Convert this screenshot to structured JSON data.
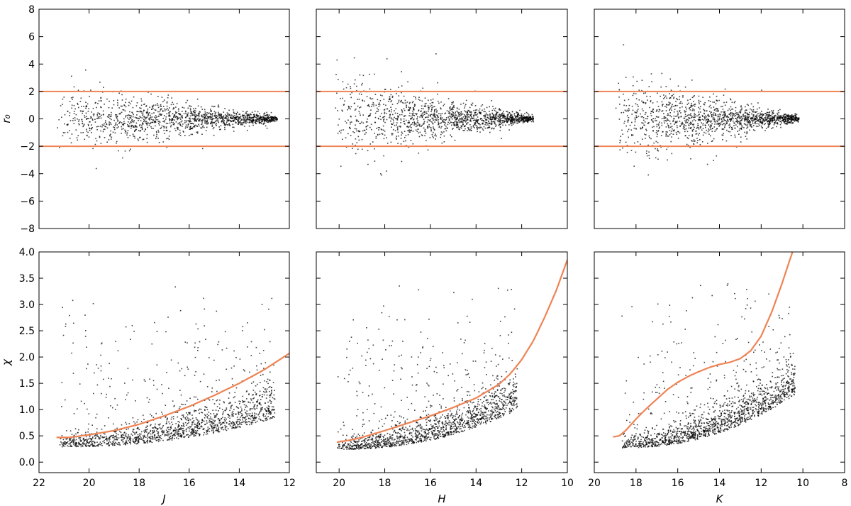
{
  "chart_data": [
    {
      "type": "scatter",
      "panel": "top-left",
      "xlabel": "",
      "ylabel": "r₀",
      "xlim": [
        22,
        12
      ],
      "ylim": [
        -8,
        8
      ],
      "xticks": [],
      "yticks": [
        "−8",
        "−6",
        "−4",
        "−2",
        "0",
        "2",
        "4",
        "6",
        "8"
      ],
      "cloud": {
        "x_start": 21.3,
        "x_end": 12.5,
        "center": 0.05,
        "spread_faint": 1.3,
        "spread_bright": 0.1,
        "n_points": 1400
      },
      "reference_lines": [
        {
          "y": 2
        },
        {
          "y": -2
        }
      ],
      "color": "#ef8354"
    },
    {
      "type": "scatter",
      "panel": "top-middle",
      "xlabel": "",
      "ylabel": "",
      "xlim": [
        21,
        10
      ],
      "ylim": [
        -8,
        8
      ],
      "xticks": [],
      "yticks": [],
      "cloud": {
        "x_start": 20.2,
        "x_end": 11.5,
        "center": 0.05,
        "spread_faint": 1.6,
        "spread_bright": 0.1,
        "n_points": 1400
      },
      "reference_lines": [
        {
          "y": 2
        },
        {
          "y": -2
        }
      ],
      "color": "#ef8354"
    },
    {
      "type": "scatter",
      "panel": "top-right",
      "xlabel": "",
      "ylabel": "",
      "xlim": [
        20,
        8
      ],
      "ylim": [
        -8,
        8
      ],
      "xticks": [],
      "yticks": [],
      "cloud": {
        "x_start": 19.0,
        "x_end": 10.2,
        "center": 0.05,
        "spread_faint": 1.6,
        "spread_bright": 0.1,
        "n_points": 1400
      },
      "reference_lines": [
        {
          "y": 2
        },
        {
          "y": -2
        }
      ],
      "color": "#ef8354"
    },
    {
      "type": "scatter",
      "panel": "bottom-left",
      "xlabel": "J",
      "ylabel": "χ",
      "xlim": [
        22,
        12
      ],
      "ylim": [
        -0.2,
        4.0
      ],
      "xticks": [
        "22",
        "20",
        "18",
        "16",
        "14",
        "12"
      ],
      "yticks": [
        "0.0",
        "0.5",
        "1.0",
        "1.5",
        "2.0",
        "2.5",
        "3.0",
        "3.5",
        "4.0"
      ],
      "cloud": {
        "x_start": 21.2,
        "x_end": 12.6,
        "base_faint": 0.3,
        "base_bright": 0.85,
        "n_points": 1500
      },
      "curve": {
        "x": [
          21.3,
          20.8,
          20,
          19,
          18,
          17,
          16,
          15,
          14,
          13,
          12
        ],
        "y": [
          0.47,
          0.47,
          0.52,
          0.6,
          0.72,
          0.88,
          1.06,
          1.27,
          1.5,
          1.76,
          2.07
        ]
      },
      "color": "#ef8354"
    },
    {
      "type": "scatter",
      "panel": "bottom-middle",
      "xlabel": "H",
      "ylabel": "",
      "xlim": [
        21,
        10
      ],
      "ylim": [
        -0.2,
        4.0
      ],
      "xticks": [
        "20",
        "18",
        "16",
        "14",
        "12",
        "10"
      ],
      "yticks": [],
      "cloud": {
        "x_start": 20.1,
        "x_end": 12.2,
        "base_faint": 0.25,
        "base_bright": 1.0,
        "n_points": 1500
      },
      "curve": {
        "x": [
          20.1,
          19.5,
          19,
          18,
          17,
          16,
          15,
          14,
          13,
          12.5,
          12,
          11.5,
          11,
          10.5,
          10
        ],
        "y": [
          0.38,
          0.42,
          0.47,
          0.6,
          0.74,
          0.88,
          1.04,
          1.22,
          1.48,
          1.68,
          1.95,
          2.3,
          2.75,
          3.25,
          3.85
        ]
      },
      "color": "#ef8354"
    },
    {
      "type": "scatter",
      "panel": "bottom-right",
      "xlabel": "K",
      "ylabel": "",
      "xlim": [
        20,
        8
      ],
      "ylim": [
        -0.2,
        4.0
      ],
      "xticks": [
        "20",
        "18",
        "16",
        "14",
        "12",
        "10",
        "8"
      ],
      "yticks": [],
      "cloud": {
        "x_start": 18.7,
        "x_end": 10.4,
        "base_faint": 0.28,
        "base_bright": 1.3,
        "n_points": 1500
      },
      "curve": {
        "x": [
          19.1,
          18.8,
          18.5,
          18,
          17.5,
          17,
          16.5,
          16,
          15.5,
          15,
          14.5,
          14,
          13.5,
          13,
          12.5,
          12,
          11.5,
          11,
          10.5
        ],
        "y": [
          0.48,
          0.5,
          0.6,
          0.82,
          1.02,
          1.2,
          1.38,
          1.52,
          1.63,
          1.72,
          1.8,
          1.86,
          1.9,
          1.97,
          2.12,
          2.4,
          2.85,
          3.4,
          4.0
        ]
      },
      "color": "#ef8354"
    }
  ]
}
